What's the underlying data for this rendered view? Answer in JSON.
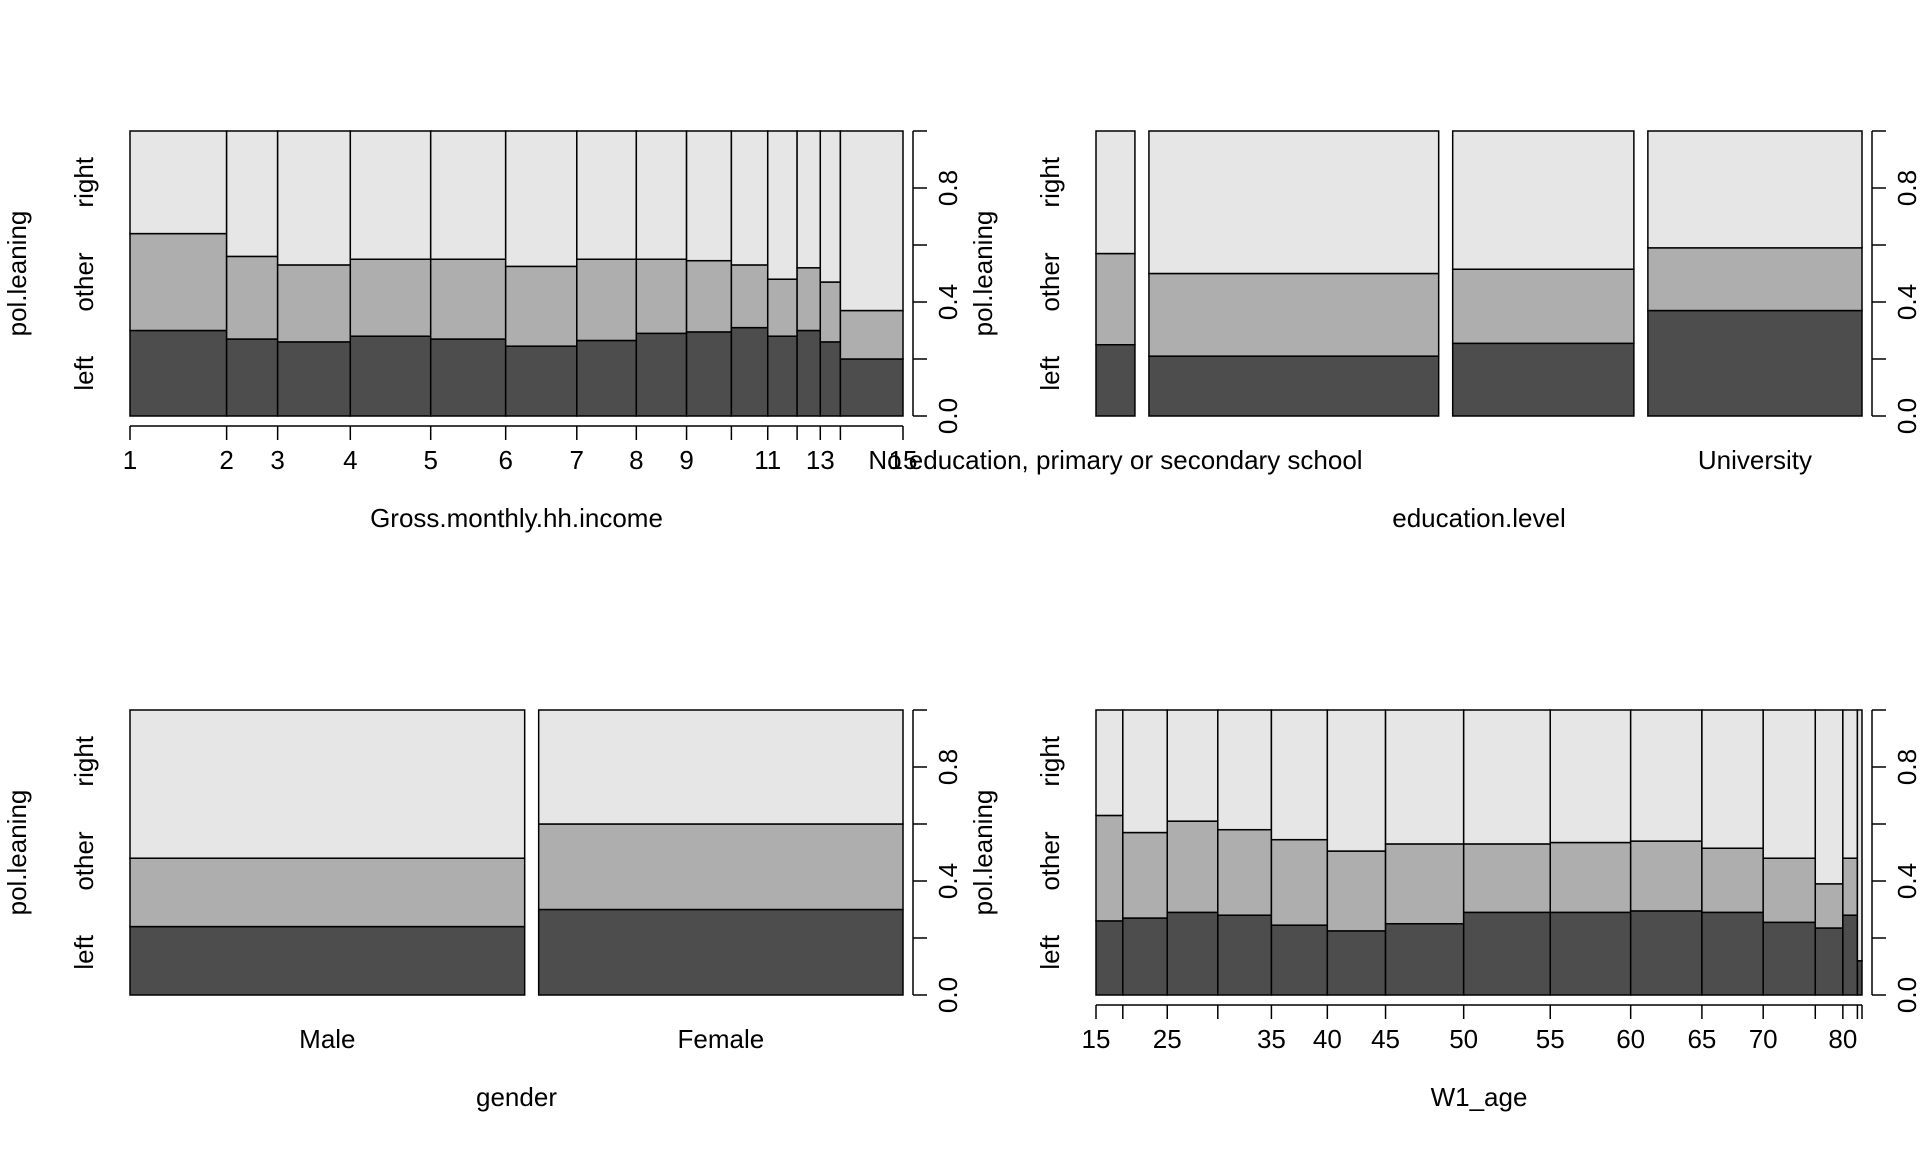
{
  "colors": {
    "left": "#4d4d4d",
    "other": "#aeaeae",
    "right": "#e6e6e6",
    "stroke": "#000000",
    "background": "#ffffff"
  },
  "chart_data": [
    {
      "type": "spineplot",
      "xlabel": "Gross.monthly.hh.income",
      "ylabel": "pol.leaning",
      "levels": [
        "left",
        "other",
        "right"
      ],
      "x_tick_labels": [
        "1",
        "2",
        "3",
        "4",
        "5",
        "6",
        "7",
        "8",
        "9",
        "11",
        "13",
        "15"
      ],
      "y_ticks": [
        "0.0",
        "0.4",
        "0.8"
      ],
      "bins": [
        {
          "from": 1,
          "to": 2,
          "left": 0.3,
          "other": 0.34
        },
        {
          "from": 2,
          "to": 3,
          "left": 0.27,
          "other": 0.29
        },
        {
          "from": 3,
          "to": 4,
          "left": 0.26,
          "other": 0.27
        },
        {
          "from": 4,
          "to": 5,
          "left": 0.28,
          "other": 0.27
        },
        {
          "from": 5,
          "to": 6,
          "left": 0.27,
          "other": 0.28
        },
        {
          "from": 6,
          "to": 7,
          "left": 0.245,
          "other": 0.28
        },
        {
          "from": 7,
          "to": 8,
          "left": 0.265,
          "other": 0.285
        },
        {
          "from": 8,
          "to": 9,
          "left": 0.29,
          "other": 0.26
        },
        {
          "from": 9,
          "to": 10,
          "left": 0.295,
          "other": 0.25
        },
        {
          "from": 10,
          "to": 11,
          "left": 0.31,
          "other": 0.22
        },
        {
          "from": 11,
          "to": 12,
          "left": 0.28,
          "other": 0.2
        },
        {
          "from": 12,
          "to": 13,
          "left": 0.3,
          "other": 0.22
        },
        {
          "from": 13,
          "to": 14,
          "left": 0.26,
          "other": 0.21
        },
        {
          "from": 14,
          "to": 15,
          "left": 0.2,
          "other": 0.17
        }
      ],
      "bin_shares": [
        0.125,
        0.066,
        0.094,
        0.104,
        0.097,
        0.092,
        0.077,
        0.065,
        0.058,
        0.047,
        0.038,
        0.03,
        0.026,
        0.081
      ]
    },
    {
      "type": "spineplot",
      "xlabel": "education.level",
      "ylabel": "pol.leaning",
      "levels": [
        "left",
        "other",
        "right"
      ],
      "y_ticks": [
        "0.0",
        "0.4",
        "0.8"
      ],
      "categories": [
        "No education, primary or secondary school",
        "",
        "",
        "University"
      ],
      "values": [
        {
          "share": 0.052,
          "left": 0.25,
          "other": 0.32
        },
        {
          "share": 0.387,
          "left": 0.21,
          "other": 0.29
        },
        {
          "share": 0.242,
          "left": 0.255,
          "other": 0.26
        },
        {
          "share": 0.286,
          "left": 0.37,
          "other": 0.22
        }
      ]
    },
    {
      "type": "spineplot",
      "xlabel": "gender",
      "ylabel": "pol.leaning",
      "levels": [
        "left",
        "other",
        "right"
      ],
      "y_ticks": [
        "0.0",
        "0.4",
        "0.8"
      ],
      "categories": [
        "Male",
        "Female"
      ],
      "values": [
        {
          "share": 0.52,
          "left": 0.24,
          "other": 0.24
        },
        {
          "share": 0.48,
          "left": 0.3,
          "other": 0.3
        }
      ]
    },
    {
      "type": "spineplot",
      "xlabel": "W1_age",
      "ylabel": "pol.leaning",
      "levels": [
        "left",
        "other",
        "right"
      ],
      "x_tick_labels": [
        "15",
        "25",
        "35",
        "40",
        "45",
        "50",
        "55",
        "60",
        "65",
        "70",
        "80"
      ],
      "y_ticks": [
        "0.0",
        "0.4",
        "0.8"
      ],
      "bins": [
        {
          "from": 15,
          "to": 20,
          "left": 0.26,
          "other": 0.37
        },
        {
          "from": 20,
          "to": 25,
          "left": 0.27,
          "other": 0.3
        },
        {
          "from": 25,
          "to": 30,
          "left": 0.29,
          "other": 0.32
        },
        {
          "from": 30,
          "to": 35,
          "left": 0.28,
          "other": 0.3
        },
        {
          "from": 35,
          "to": 40,
          "left": 0.245,
          "other": 0.3
        },
        {
          "from": 40,
          "to": 45,
          "left": 0.225,
          "other": 0.28
        },
        {
          "from": 45,
          "to": 50,
          "left": 0.25,
          "other": 0.28
        },
        {
          "from": 50,
          "to": 55,
          "left": 0.29,
          "other": 0.24
        },
        {
          "from": 55,
          "to": 60,
          "left": 0.29,
          "other": 0.245
        },
        {
          "from": 60,
          "to": 65,
          "left": 0.295,
          "other": 0.245
        },
        {
          "from": 65,
          "to": 70,
          "left": 0.29,
          "other": 0.225
        },
        {
          "from": 70,
          "to": 75,
          "left": 0.255,
          "other": 0.225
        },
        {
          "from": 75,
          "to": 80,
          "left": 0.235,
          "other": 0.155
        },
        {
          "from": 80,
          "to": 85,
          "left": 0.28,
          "other": 0.2
        },
        {
          "from": 85,
          "to": 90,
          "left": 0.12,
          "other": 0.0
        }
      ],
      "bin_shares": [
        0.035,
        0.058,
        0.066,
        0.07,
        0.073,
        0.076,
        0.102,
        0.113,
        0.105,
        0.093,
        0.08,
        0.068,
        0.036,
        0.019,
        0.006
      ]
    }
  ]
}
